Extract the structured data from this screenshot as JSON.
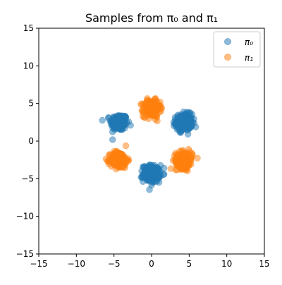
{
  "chart_data": {
    "type": "scatter",
    "title": "Samples from π₀ and π₁",
    "xlabel": "",
    "ylabel": "",
    "xlim": [
      -15,
      15
    ],
    "ylim": [
      -15,
      15
    ],
    "xticks": [
      -15,
      -10,
      -5,
      0,
      5,
      10,
      15
    ],
    "yticks": [
      -15,
      -10,
      -5,
      0,
      5,
      10,
      15
    ],
    "grid": false,
    "legend_position": "upper right",
    "marker_alpha": 0.5,
    "series": [
      {
        "name": "π₀",
        "color": "#1f77b4",
        "cluster_centers": [
          [
            -4.33,
            2.5
          ],
          [
            4.33,
            2.5
          ],
          [
            0.0,
            -4.33
          ]
        ],
        "cluster_radius_approx": 1.2
      },
      {
        "name": "π₁",
        "color": "#ff7f0e",
        "cluster_centers": [
          [
            0.0,
            4.33
          ],
          [
            -4.33,
            -2.5
          ],
          [
            4.33,
            -2.5
          ]
        ],
        "cluster_radius_approx": 1.2
      }
    ]
  }
}
